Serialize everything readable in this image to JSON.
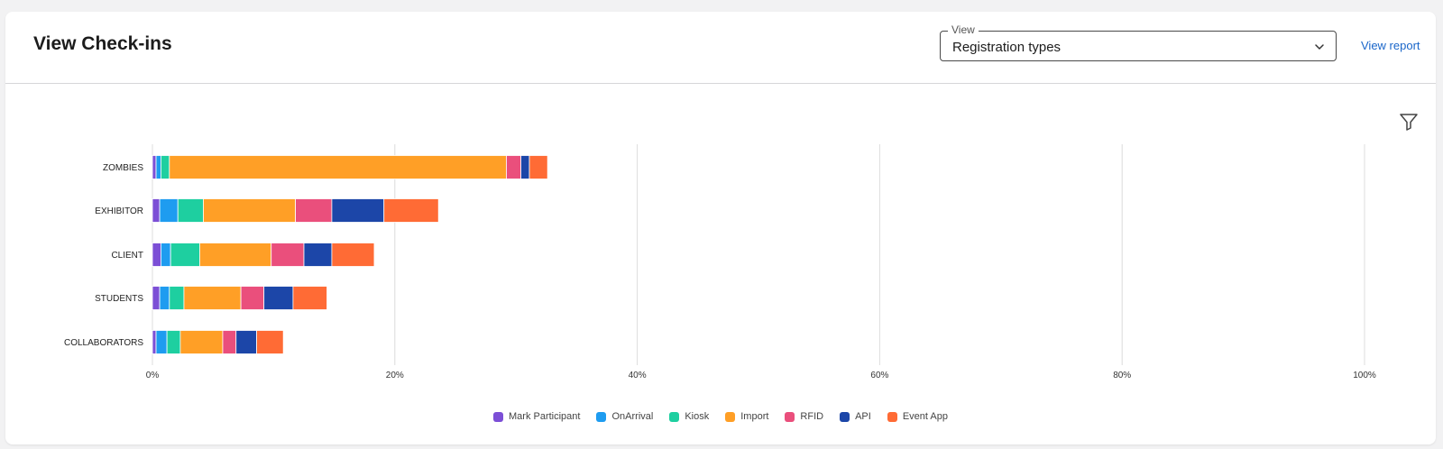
{
  "header": {
    "title": "View Check-ins",
    "view_select": {
      "legend": "View",
      "value": "Registration types"
    },
    "view_report_label": "View report"
  },
  "icons": {
    "filter": "filter-icon",
    "chevron": "chevron-down-icon"
  },
  "chart_data": {
    "type": "bar",
    "orientation": "horizontal",
    "stacked": true,
    "categories": [
      "ZOMBIES",
      "EXHIBITOR",
      "CLIENT",
      "STUDENTS",
      "COLLABORATORS"
    ],
    "x_ticks": [
      "0%",
      "20%",
      "40%",
      "60%",
      "80%",
      "100%"
    ],
    "xlim": [
      0,
      100
    ],
    "grid": true,
    "legend_position": "bottom",
    "series": [
      {
        "name": "Mark Participant",
        "color": "#7c4fd6",
        "values": [
          0.3,
          0.6,
          0.7,
          0.6,
          0.3
        ]
      },
      {
        "name": "OnArrival",
        "color": "#1e9cf0",
        "values": [
          0.4,
          1.5,
          0.8,
          0.8,
          0.9
        ]
      },
      {
        "name": "Kiosk",
        "color": "#1ecfa0",
        "values": [
          0.7,
          2.1,
          2.4,
          1.2,
          1.1
        ]
      },
      {
        "name": "Import",
        "color": "#ff9f26",
        "values": [
          27.8,
          7.6,
          5.9,
          4.7,
          3.5
        ]
      },
      {
        "name": "RFID",
        "color": "#ea4f7c",
        "values": [
          1.2,
          3.0,
          2.7,
          1.9,
          1.1
        ]
      },
      {
        "name": "API",
        "color": "#1c46a8",
        "values": [
          0.7,
          4.3,
          2.3,
          2.4,
          1.7
        ]
      },
      {
        "name": "Event App",
        "color": "#ff6b35",
        "values": [
          1.5,
          4.5,
          3.5,
          2.8,
          2.2
        ]
      }
    ]
  }
}
